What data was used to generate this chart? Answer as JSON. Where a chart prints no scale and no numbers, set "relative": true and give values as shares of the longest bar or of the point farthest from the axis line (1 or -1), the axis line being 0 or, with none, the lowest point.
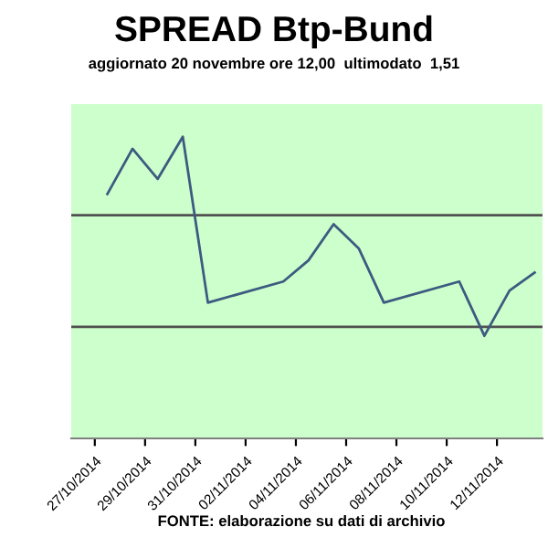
{
  "chart_data": {
    "type": "line",
    "title": "SPREAD Btp-Bund",
    "subtitle": "aggiornato 20 novembre ore 12,00  ultimodato  1,51",
    "relative": true,
    "x": [
      "2014-10-27T12:00",
      "2014-10-28T12:00",
      "2014-10-29T12:00",
      "2014-10-30T12:00",
      "2014-10-31T12:00",
      "2014-11-03T12:00",
      "2014-11-04T12:00",
      "2014-11-05T12:00",
      "2014-11-06T12:00",
      "2014-11-07T12:00",
      "2014-11-10T12:00",
      "2014-11-11T12:00",
      "2014-11-12T12:00",
      "2014-11-13T12:00"
    ],
    "series": [
      {
        "color": "#3d5a80",
        "values": [
          0.81,
          0.96,
          0.86,
          1,
          0.45,
          0.52,
          0.59,
          0.71,
          0.63,
          0.45,
          0.52,
          0.34,
          0.49,
          0.55
        ]
      }
    ],
    "xlim": [
      "2014-10-26T01:30",
      "2014-11-13T19:30"
    ],
    "xticks": [
      {
        "value": "2014-10-27",
        "label": "27/10/2014"
      },
      {
        "value": "2014-10-29",
        "label": "29/10/2014"
      },
      {
        "value": "2014-10-31",
        "label": "31/10/2014"
      },
      {
        "value": "2014-11-02",
        "label": "02/11/2014"
      },
      {
        "value": "2014-11-04",
        "label": "04/11/2014"
      },
      {
        "value": "2014-11-06",
        "label": "06/11/2014"
      },
      {
        "value": "2014-11-08",
        "label": "08/11/2014"
      },
      {
        "value": "2014-11-10",
        "label": "10/11/2014"
      },
      {
        "value": "2014-11-12",
        "label": "12/11/2014"
      }
    ],
    "ref_lines": [
      {
        "axis": "y",
        "value": 0.74,
        "color": "#505050"
      },
      {
        "axis": "y",
        "value": 0.37,
        "color": "#505050"
      }
    ],
    "legend": false,
    "marker": "none",
    "line_style": "solid",
    "annotations": [
      "FONTE: elaborazione su dati di archivio"
    ]
  }
}
